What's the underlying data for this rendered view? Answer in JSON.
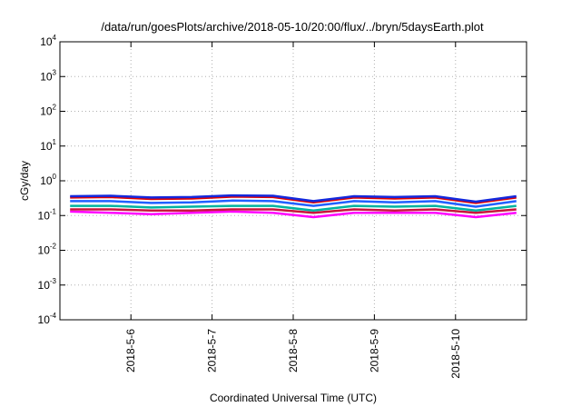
{
  "chart_data": {
    "type": "line",
    "title": "/data/run/goesPlots/archive/2018-05-10/20:00/flux/../bryn/5daysEarth.plot",
    "xlabel": "Coordinated Universal Time (UTC)",
    "ylabel": "cGy/day",
    "y_scale": "log",
    "ylim": [
      0.0001,
      10000
    ],
    "y_ticks": [
      {
        "base": "10",
        "exp": "-4",
        "value": 0.0001
      },
      {
        "base": "10",
        "exp": "-3",
        "value": 0.001
      },
      {
        "base": "10",
        "exp": "-2",
        "value": 0.01
      },
      {
        "base": "10",
        "exp": "-1",
        "value": 0.1
      },
      {
        "base": "10",
        "exp": "0",
        "value": 1
      },
      {
        "base": "10",
        "exp": "1",
        "value": 10
      },
      {
        "base": "10",
        "exp": "2",
        "value": 100
      },
      {
        "base": "10",
        "exp": "3",
        "value": 1000
      },
      {
        "base": "10",
        "exp": "4",
        "value": 10000
      }
    ],
    "x_ticks": [
      "2018-5-6",
      "2018-5-7",
      "2018-5-8",
      "2018-5-9",
      "2018-5-10"
    ],
    "xlim": [
      "2018-05-05 03:00",
      "2018-05-10 21:00"
    ],
    "grid": true,
    "legend": "none",
    "series": [
      {
        "color": "#ff00ff",
        "x": [
          "2018-05-05 06:00",
          "2018-05-05 18:00",
          "2018-05-06 06:00",
          "2018-05-06 18:00",
          "2018-05-07 06:00",
          "2018-05-07 18:00",
          "2018-05-08 06:00",
          "2018-05-08 18:00",
          "2018-05-09 06:00",
          "2018-05-09 18:00",
          "2018-05-10 06:00",
          "2018-05-10 18:00"
        ],
        "values": [
          0.13,
          0.12,
          0.11,
          0.12,
          0.13,
          0.12,
          0.09,
          0.12,
          0.12,
          0.12,
          0.09,
          0.12
        ]
      },
      {
        "color": "#c8143c",
        "x": [
          "2018-05-05 06:00",
          "2018-05-05 18:00",
          "2018-05-06 06:00",
          "2018-05-06 18:00",
          "2018-05-07 06:00",
          "2018-05-07 18:00",
          "2018-05-08 06:00",
          "2018-05-08 18:00",
          "2018-05-09 06:00",
          "2018-05-09 18:00",
          "2018-05-10 06:00",
          "2018-05-10 18:00"
        ],
        "values": [
          0.15,
          0.15,
          0.14,
          0.14,
          0.15,
          0.15,
          0.12,
          0.15,
          0.14,
          0.15,
          0.12,
          0.15
        ]
      },
      {
        "color": "#00b4a0",
        "x": [
          "2018-05-05 06:00",
          "2018-05-05 18:00",
          "2018-05-06 06:00",
          "2018-05-06 18:00",
          "2018-05-07 06:00",
          "2018-05-07 18:00",
          "2018-05-08 06:00",
          "2018-05-08 18:00",
          "2018-05-09 06:00",
          "2018-05-09 18:00",
          "2018-05-10 06:00",
          "2018-05-10 18:00"
        ],
        "values": [
          0.19,
          0.19,
          0.17,
          0.18,
          0.19,
          0.19,
          0.14,
          0.19,
          0.18,
          0.19,
          0.14,
          0.19
        ]
      },
      {
        "color": "#2060ff",
        "x": [
          "2018-05-05 06:00",
          "2018-05-05 18:00",
          "2018-05-06 06:00",
          "2018-05-06 18:00",
          "2018-05-07 06:00",
          "2018-05-07 18:00",
          "2018-05-08 06:00",
          "2018-05-08 18:00",
          "2018-05-09 06:00",
          "2018-05-09 18:00",
          "2018-05-10 06:00",
          "2018-05-10 18:00"
        ],
        "values": [
          0.26,
          0.26,
          0.23,
          0.24,
          0.27,
          0.26,
          0.19,
          0.26,
          0.24,
          0.26,
          0.18,
          0.26
        ]
      },
      {
        "color": "#e00000",
        "x": [
          "2018-05-05 06:00",
          "2018-05-05 18:00",
          "2018-05-06 06:00",
          "2018-05-06 18:00",
          "2018-05-07 06:00",
          "2018-05-07 18:00",
          "2018-05-08 06:00",
          "2018-05-08 18:00",
          "2018-05-09 06:00",
          "2018-05-09 18:00",
          "2018-05-10 06:00",
          "2018-05-10 18:00"
        ],
        "values": [
          0.33,
          0.34,
          0.3,
          0.31,
          0.35,
          0.34,
          0.24,
          0.33,
          0.31,
          0.33,
          0.23,
          0.33
        ]
      },
      {
        "color": "#1428dc",
        "x": [
          "2018-05-05 06:00",
          "2018-05-05 18:00",
          "2018-05-06 06:00",
          "2018-05-06 18:00",
          "2018-05-07 06:00",
          "2018-05-07 18:00",
          "2018-05-08 06:00",
          "2018-05-08 18:00",
          "2018-05-09 06:00",
          "2018-05-09 18:00",
          "2018-05-10 06:00",
          "2018-05-10 18:00"
        ],
        "values": [
          0.36,
          0.37,
          0.33,
          0.34,
          0.38,
          0.37,
          0.26,
          0.36,
          0.34,
          0.36,
          0.25,
          0.36
        ]
      }
    ]
  }
}
